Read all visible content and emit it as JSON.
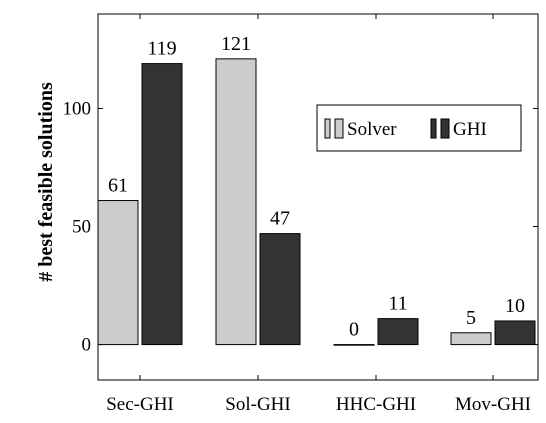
{
  "chart_data": {
    "type": "bar",
    "categories": [
      "Sec-GHI",
      "Sol-GHI",
      "HHC-GHI",
      "Mov-GHI"
    ],
    "series": [
      {
        "name": "Solver",
        "values": [
          61,
          121,
          0,
          5
        ],
        "color": "#cccccc"
      },
      {
        "name": "GHI",
        "values": [
          119,
          47,
          11,
          10
        ],
        "color": "#333333"
      }
    ],
    "ylabel": "# best feasible solutions",
    "yticks": [
      0,
      50,
      100
    ],
    "ylim": [
      -15,
      140
    ],
    "grid": false,
    "legend": "upper-right"
  }
}
